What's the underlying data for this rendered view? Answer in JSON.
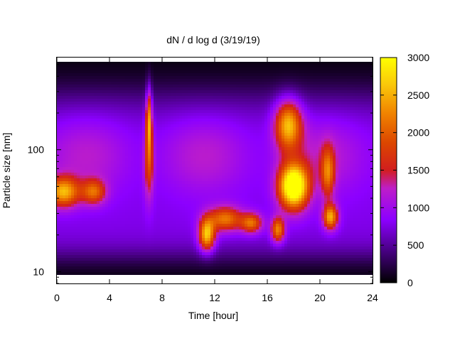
{
  "chart_data": {
    "type": "heatmap",
    "title": "dN / d log d (3/19/19)",
    "xlabel": "Time [hour]",
    "ylabel": "Particle size [nm]",
    "xlim": [
      0,
      24
    ],
    "ylim_nm": [
      8,
      570
    ],
    "y_scale": "log",
    "x_ticks": [
      0,
      4,
      8,
      12,
      16,
      20,
      24
    ],
    "x_tick_labels": [
      "0",
      "4",
      "8",
      "12",
      "16",
      "20",
      "24"
    ],
    "y_ticks": [
      10,
      100
    ],
    "y_tick_labels": [
      "10",
      "100"
    ],
    "colorbar": {
      "range": [
        0,
        3000
      ],
      "ticks": [
        0,
        500,
        1000,
        1500,
        2000,
        2500,
        3000
      ],
      "tick_labels": [
        "0",
        "500",
        "1000",
        "1500",
        "2000",
        "2500",
        "3000"
      ],
      "palette": "black-purple-red-orange-yellow"
    },
    "features": [
      {
        "t": 0.5,
        "d": 45,
        "value": 1700,
        "sigma_t": 1.2,
        "sigma_logd": 0.12
      },
      {
        "t": 2.8,
        "d": 45,
        "value": 1200,
        "sigma_t": 0.9,
        "sigma_logd": 0.1
      },
      {
        "t": 7.0,
        "d": 180,
        "value": 1500,
        "sigma_t": 0.22,
        "sigma_logd": 0.25
      },
      {
        "t": 7.0,
        "d": 80,
        "value": 1000,
        "sigma_t": 0.35,
        "sigma_logd": 0.3
      },
      {
        "t": 11.4,
        "d": 20,
        "value": 1900,
        "sigma_t": 0.6,
        "sigma_logd": 0.13
      },
      {
        "t": 12.8,
        "d": 27,
        "value": 1400,
        "sigma_t": 1.3,
        "sigma_logd": 0.1
      },
      {
        "t": 14.8,
        "d": 25,
        "value": 1300,
        "sigma_t": 0.8,
        "sigma_logd": 0.08
      },
      {
        "t": 18.0,
        "d": 50,
        "value": 2750,
        "sigma_t": 1.1,
        "sigma_logd": 0.18
      },
      {
        "t": 17.6,
        "d": 160,
        "value": 1800,
        "sigma_t": 1.0,
        "sigma_logd": 0.2
      },
      {
        "t": 16.8,
        "d": 22,
        "value": 1500,
        "sigma_t": 0.5,
        "sigma_logd": 0.1
      },
      {
        "t": 20.8,
        "d": 28,
        "value": 1700,
        "sigma_t": 0.55,
        "sigma_logd": 0.1
      },
      {
        "t": 20.6,
        "d": 65,
        "value": 1200,
        "sigma_t": 0.5,
        "sigma_logd": 0.2
      }
    ]
  }
}
